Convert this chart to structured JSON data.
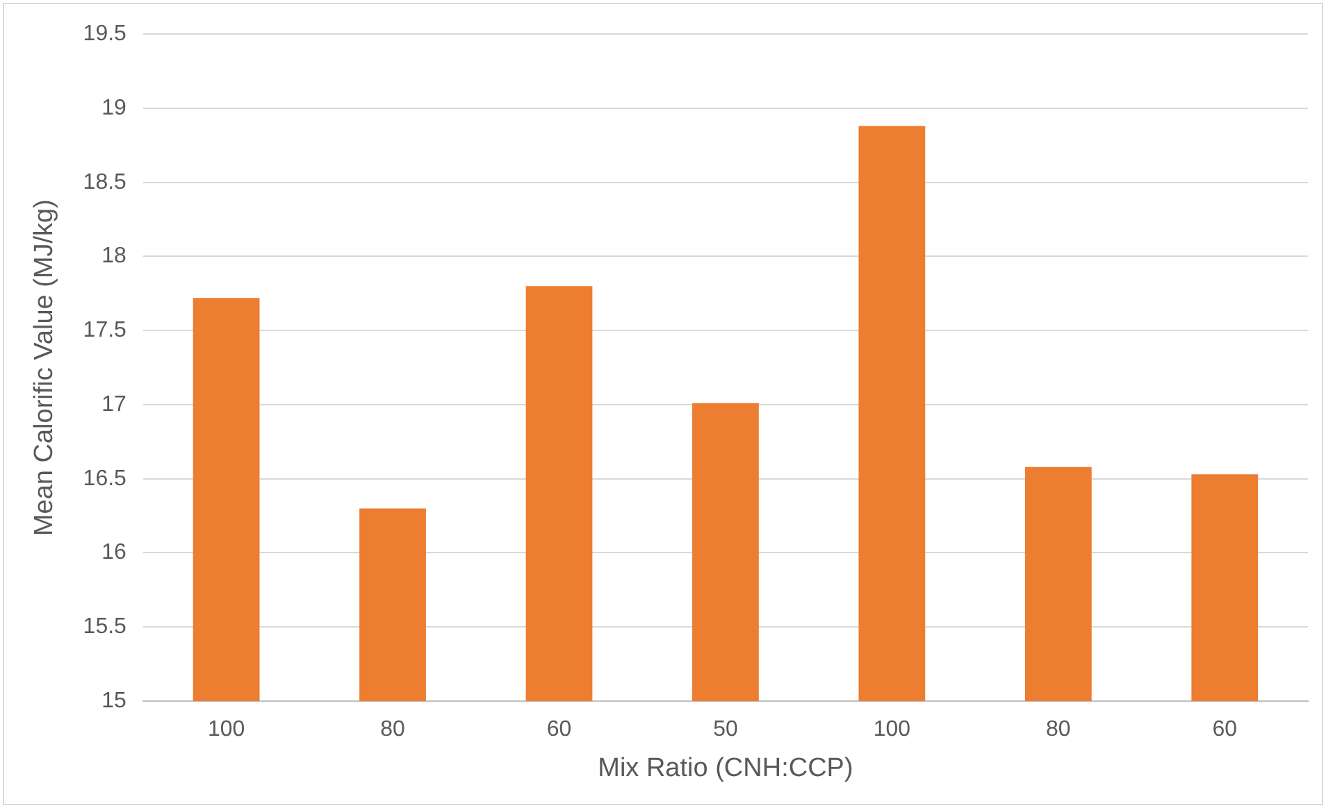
{
  "chart_data": {
    "type": "bar",
    "xlabel": "Mix Ratio (CNH:CCP)",
    "ylabel": "Mean Calorific Value (MJ/kg)",
    "categories": [
      "100",
      "80",
      "60",
      "50",
      "100",
      "80",
      "60"
    ],
    "values": [
      17.72,
      16.3,
      17.8,
      17.01,
      18.88,
      16.58,
      16.53
    ],
    "color": "#ed7d31",
    "ylim": [
      15,
      19.5
    ],
    "yticks": [
      15,
      15.5,
      16,
      16.5,
      17,
      17.5,
      18,
      18.5,
      19,
      19.5
    ],
    "grid": "y",
    "legend": false
  }
}
